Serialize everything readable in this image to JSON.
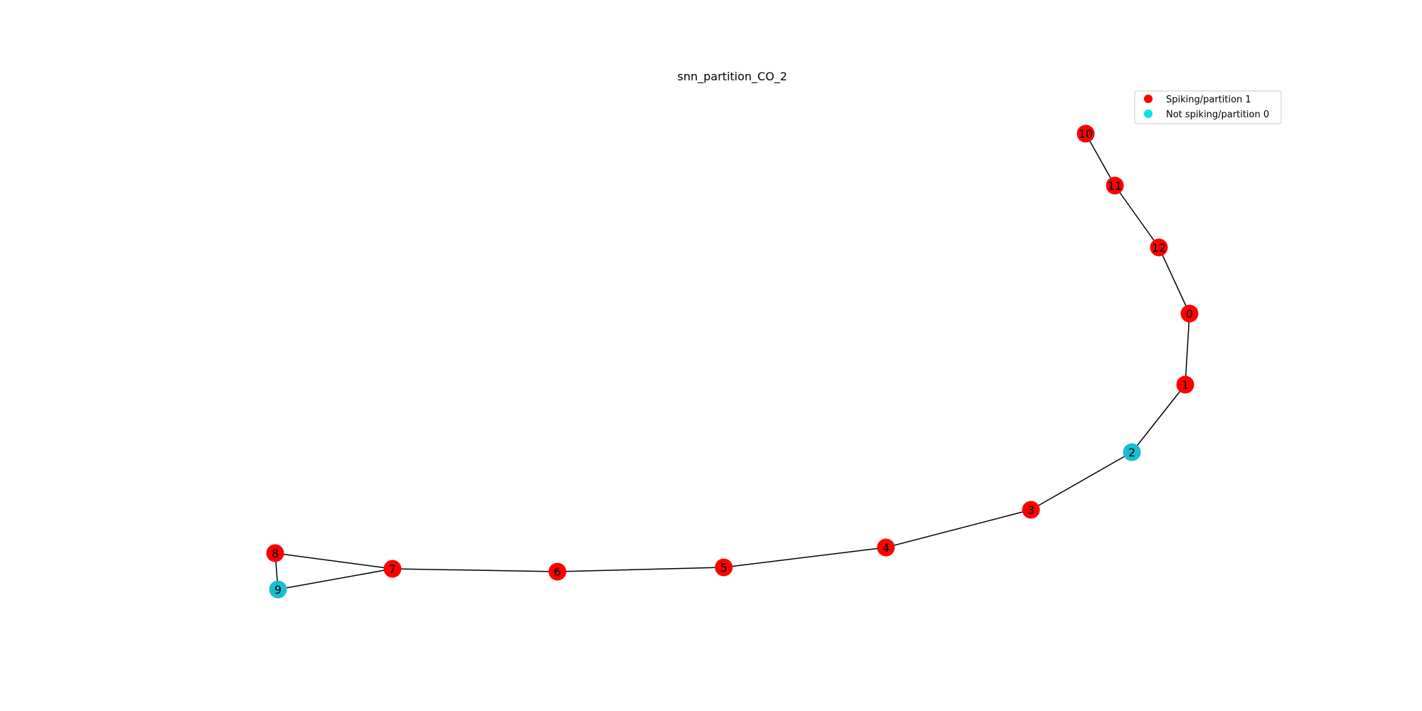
{
  "title": "snn_partition_CO_2",
  "legend": {
    "items": [
      {
        "label": "Spiking/partition 1",
        "color": "#ff0000"
      },
      {
        "label": "Not spiking/partition 0",
        "color": "#00e5e5"
      }
    ]
  },
  "colors": {
    "spiking": "#ff0000",
    "not_spiking": "#17becf",
    "edge": "#000000"
  },
  "graph": {
    "nodes": [
      {
        "id": "0",
        "partition": 1
      },
      {
        "id": "1",
        "partition": 1
      },
      {
        "id": "2",
        "partition": 0
      },
      {
        "id": "3",
        "partition": 1
      },
      {
        "id": "4",
        "partition": 1
      },
      {
        "id": "5",
        "partition": 1
      },
      {
        "id": "6",
        "partition": 1
      },
      {
        "id": "7",
        "partition": 1
      },
      {
        "id": "8",
        "partition": 1
      },
      {
        "id": "9",
        "partition": 0
      },
      {
        "id": "10",
        "partition": 1
      },
      {
        "id": "11",
        "partition": 1
      },
      {
        "id": "12",
        "partition": 1
      }
    ],
    "edges": [
      [
        "10",
        "11"
      ],
      [
        "11",
        "12"
      ],
      [
        "12",
        "0"
      ],
      [
        "0",
        "1"
      ],
      [
        "1",
        "2"
      ],
      [
        "2",
        "3"
      ],
      [
        "3",
        "4"
      ],
      [
        "4",
        "5"
      ],
      [
        "5",
        "6"
      ],
      [
        "6",
        "7"
      ],
      [
        "7",
        "8"
      ],
      [
        "7",
        "9"
      ],
      [
        "8",
        "9"
      ]
    ]
  }
}
